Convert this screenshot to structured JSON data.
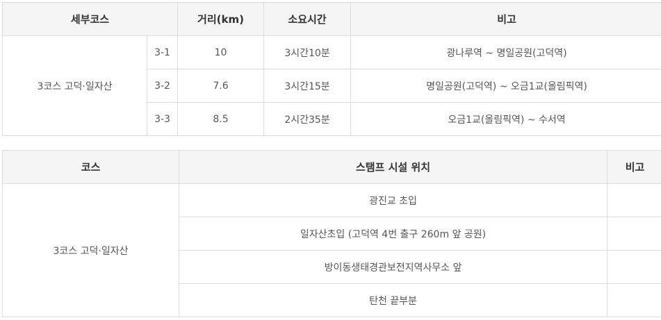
{
  "course_table": {
    "headers": {
      "course": "세부코스",
      "distance": "거리(km)",
      "duration": "소요시간",
      "note": "비고"
    },
    "course_name": "3코스 고덕·일자산",
    "rows": [
      {
        "code": "3-1",
        "distance": "10",
        "duration": "3시간10분",
        "note": "광나루역 ~ 명일공원(고덕역)"
      },
      {
        "code": "3-2",
        "distance": "7.6",
        "duration": "3시간15분",
        "note": "명일공원(고덕역) ~ 오금1교(올림픽역)"
      },
      {
        "code": "3-3",
        "distance": "8.5",
        "duration": "2시간35분",
        "note": "오금1교(올림픽역) ~ 수서역"
      }
    ]
  },
  "stamp_table": {
    "headers": {
      "course": "코스",
      "location": "스탬프 시설 위치",
      "note": "비고"
    },
    "course_name": "3코스 고덕·일자산",
    "rows": [
      {
        "location": "광진교 초입",
        "note": ""
      },
      {
        "location": "일자산초입 (고덕역 4번 출구 260m 앞 공원)",
        "note": ""
      },
      {
        "location": "방이동생태경관보전지역사무소 앞",
        "note": ""
      },
      {
        "location": "탄천 끝부분",
        "note": ""
      }
    ]
  }
}
